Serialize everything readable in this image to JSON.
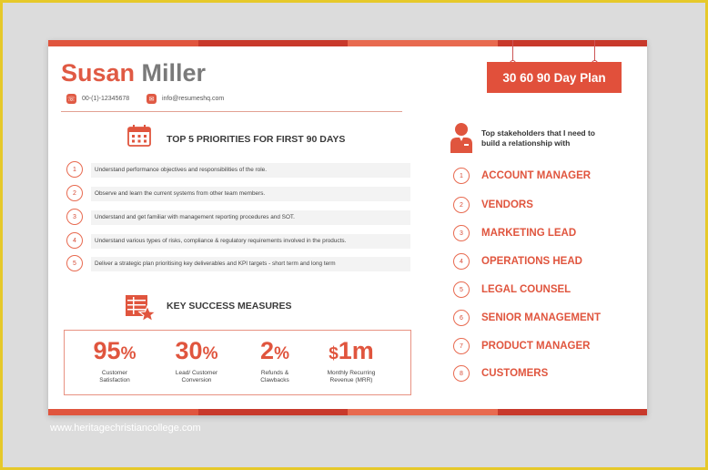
{
  "header": {
    "first_name": "Susan",
    "last_name": "Miller",
    "phone": "00-(1)-12345678",
    "email": "info@resumeshq.com",
    "plan_label": "30 60 90 Day Plan"
  },
  "priorities": {
    "title": "TOP 5 PRIORITIES FOR FIRST 90 DAYS",
    "items": [
      {
        "num": "1",
        "text": "Understand performance objectives and responsibilities of the role."
      },
      {
        "num": "2",
        "text": "Observe and learn the current systems from other team members."
      },
      {
        "num": "3",
        "text": "Understand and get familiar with management reporting procedures and SOT."
      },
      {
        "num": "4",
        "text": "Understand various types of risks, compliance & regulatory requirements involved in the products."
      },
      {
        "num": "5",
        "text": "Deliver a strategic plan prioritising key deliverables and KPI targets - short term and long term"
      }
    ]
  },
  "success": {
    "title": "KEY SUCCESS MEASURES",
    "metrics": [
      {
        "value": "95",
        "suffix": "%",
        "prefix": "",
        "label": "Customer Satisfaction"
      },
      {
        "value": "30",
        "suffix": "%",
        "prefix": "",
        "label": "Lead/ Customer Conversion"
      },
      {
        "value": "2",
        "suffix": "%",
        "prefix": "",
        "label": "Refunds & Clawbacks"
      },
      {
        "value": "1m",
        "suffix": "",
        "prefix": "$",
        "label": "Monthly Recurring Revenue (MRR)"
      }
    ]
  },
  "stakeholders": {
    "title_line1": "Top stakeholders that I need to",
    "title_line2": "build a relationship with",
    "items": [
      {
        "num": "1",
        "label": "ACCOUNT MANAGER"
      },
      {
        "num": "2",
        "label": "VENDORS"
      },
      {
        "num": "3",
        "label": "MARKETING LEAD"
      },
      {
        "num": "4",
        "label": "OPERATIONS HEAD"
      },
      {
        "num": "5",
        "label": "LEGAL COUNSEL"
      },
      {
        "num": "6",
        "label": "SENIOR MANAGEMENT"
      },
      {
        "num": "7",
        "label": "PRODUCT MANAGER"
      },
      {
        "num": "8",
        "label": "CUSTOMERS"
      }
    ]
  },
  "watermark": "www.heritagechristiancollege.com",
  "colors": {
    "accent": "#e0553e",
    "accent_dark": "#c8392b",
    "frame": "#e6c92a"
  },
  "icons": [
    "phone-icon",
    "email-icon",
    "calendar-icon",
    "checklist-star-icon",
    "person-icon"
  ]
}
